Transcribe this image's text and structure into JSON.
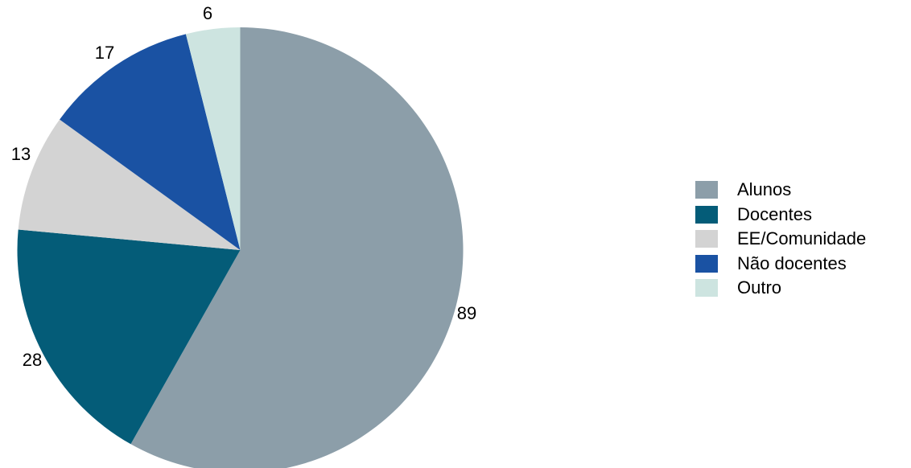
{
  "chart_data": {
    "type": "pie",
    "title": "",
    "slices": [
      {
        "label": "Alunos",
        "value": 89,
        "color": "#8c9ea9"
      },
      {
        "label": "Docentes",
        "value": 28,
        "color": "#045c78"
      },
      {
        "label": "EE/Comunidade",
        "value": 13,
        "color": "#d3d3d3"
      },
      {
        "label": "Não docentes",
        "value": 17,
        "color": "#1a52a3"
      },
      {
        "label": "Outro",
        "value": 6,
        "color": "#cde4e0"
      }
    ],
    "start": "12 o'clock",
    "direction": "clockwise",
    "legend_position": "right"
  }
}
